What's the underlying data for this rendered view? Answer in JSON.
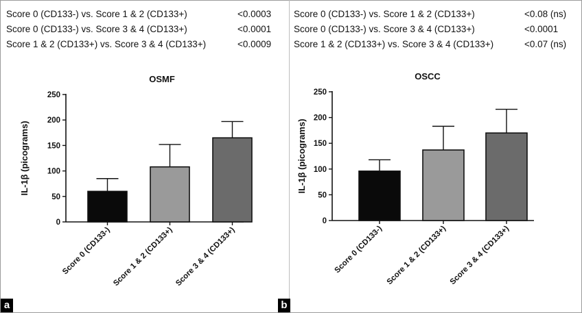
{
  "panels": [
    {
      "id": "a",
      "label": "a",
      "comparisons": [
        {
          "text": "Score 0 (CD133-) vs. Score 1 & 2 (CD133+)",
          "p": "<0.0003"
        },
        {
          "text": "Score 0 (CD133-) vs. Score 3 & 4 (CD133+)",
          "p": "<0.0001"
        },
        {
          "text": "Score 1 & 2 (CD133+) vs. Score 3 & 4 (CD133+)",
          "p": "<0.0009"
        }
      ]
    },
    {
      "id": "b",
      "label": "b",
      "comparisons": [
        {
          "text": "Score 0 (CD133-) vs. Score 1 & 2 (CD133+)",
          "p": "<0.08 (ns)"
        },
        {
          "text": "Score 0 (CD133-) vs. Score 3 & 4 (CD133+)",
          "p": "<0.0001"
        },
        {
          "text": "Score 1 & 2 (CD133+) vs. Score 3 & 4 (CD133+)",
          "p": "<0.07 (ns)"
        }
      ]
    }
  ],
  "chart_data": [
    {
      "type": "bar",
      "title": "OSMF",
      "xlabel": "",
      "ylabel": "IL-1β (picograms)",
      "ylim": [
        0,
        250
      ],
      "yticks": [
        0,
        50,
        100,
        150,
        200,
        250
      ],
      "categories": [
        "Score 0 (CD133-)",
        "Score 1 & 2 (CD133+)",
        "Score 3 & 4 (CD133+)"
      ],
      "values": [
        60,
        108,
        165
      ],
      "error_upper": [
        85,
        152,
        197
      ],
      "bar_colors": [
        "#0a0a0a",
        "#9a9a9a",
        "#6b6b6b"
      ]
    },
    {
      "type": "bar",
      "title": "OSCC",
      "xlabel": "",
      "ylabel": "IL-1β (picograms)",
      "ylim": [
        0,
        250
      ],
      "yticks": [
        0,
        50,
        100,
        150,
        200,
        250
      ],
      "categories": [
        "Score 0 (CD133-)",
        "Score 1 & 2 (CD133+)",
        "Score 3 & 4 (CD133+)"
      ],
      "values": [
        96,
        137,
        170
      ],
      "error_upper": [
        118,
        183,
        216
      ],
      "bar_colors": [
        "#0a0a0a",
        "#9a9a9a",
        "#6b6b6b"
      ]
    }
  ]
}
